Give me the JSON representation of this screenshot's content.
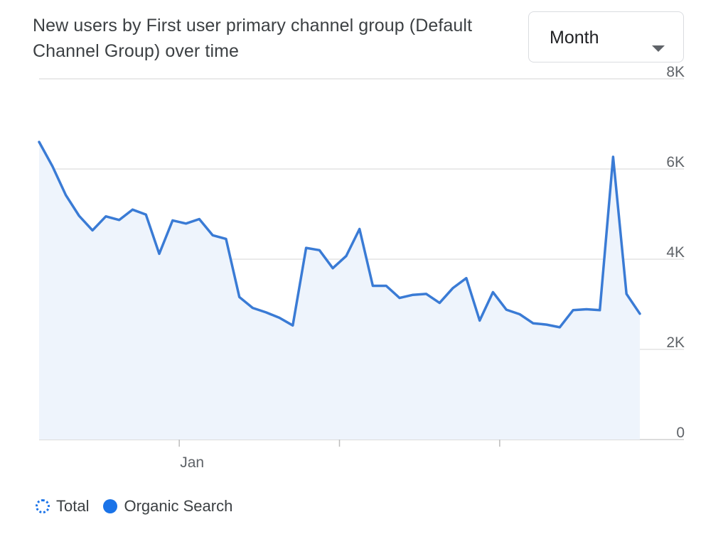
{
  "card": {
    "title": "New users by First user primary channel group (Default Channel Group) over time"
  },
  "period_select": {
    "value": "Month"
  },
  "colors": {
    "series_line": "#3a7bd5",
    "series_fill": "#eef4fc",
    "grid": "#e3e3e3",
    "axis_text": "#5f6368",
    "legend_dot": "#1a73e8"
  },
  "legend": {
    "items": [
      {
        "label": "Total",
        "marker": "dotted-circle-icon"
      },
      {
        "label": "Organic Search",
        "marker": "filled-circle-icon"
      }
    ]
  },
  "chart_data": {
    "type": "area",
    "title": "New users by First user primary channel group (Default Channel Group) over time",
    "xlabel": "",
    "ylabel": "",
    "y_axis_side": "right",
    "ylim": [
      0,
      8000
    ],
    "y_ticks": [
      0,
      2000,
      4000,
      6000,
      8000
    ],
    "y_tick_labels": [
      "0",
      "2K",
      "4K",
      "6K",
      "8K"
    ],
    "x_count": 46,
    "x_tick_labels": [
      {
        "index": 10.5,
        "label": "Jan"
      },
      {
        "index": 22.5,
        "label": ""
      },
      {
        "index": 34.5,
        "label": ""
      }
    ],
    "legend_position": "bottom-left",
    "grid": true,
    "series": [
      {
        "name": "Organic Search",
        "values": [
          6600,
          6060,
          5420,
          4960,
          4640,
          4950,
          4870,
          5100,
          4990,
          4120,
          4860,
          4790,
          4890,
          4530,
          4450,
          3160,
          2920,
          2820,
          2700,
          2530,
          4250,
          4200,
          3800,
          4070,
          4670,
          3410,
          3410,
          3140,
          3210,
          3230,
          3030,
          3360,
          3580,
          2640,
          3270,
          2880,
          2780,
          2580,
          2550,
          2490,
          2870,
          2890,
          2870,
          6270,
          3230,
          2790
        ]
      }
    ]
  }
}
